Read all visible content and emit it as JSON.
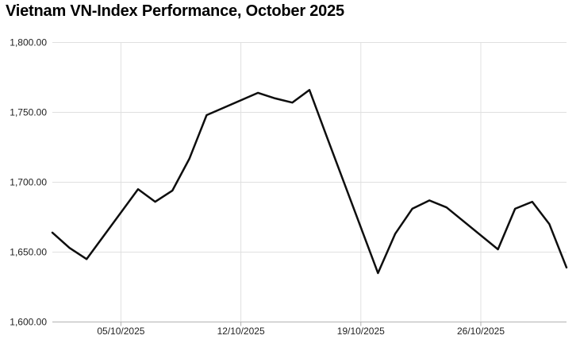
{
  "title": "Vietnam VN-Index Performance, October 2025",
  "chart_data": {
    "type": "line",
    "title": "Vietnam VN-Index Performance, October 2025",
    "series_name": "VN-Index",
    "x": [
      "01/10/2025",
      "02/10/2025",
      "03/10/2025",
      "06/10/2025",
      "07/10/2025",
      "08/10/2025",
      "09/10/2025",
      "10/10/2025",
      "13/10/2025",
      "14/10/2025",
      "15/10/2025",
      "16/10/2025",
      "17/10/2025",
      "20/10/2025",
      "21/10/2025",
      "22/10/2025",
      "23/10/2025",
      "24/10/2025",
      "27/10/2025",
      "28/10/2025",
      "29/10/2025",
      "30/10/2025",
      "31/10/2025"
    ],
    "x_day_of_month": [
      1,
      2,
      3,
      6,
      7,
      8,
      9,
      10,
      13,
      14,
      15,
      16,
      17,
      20,
      21,
      22,
      23,
      24,
      27,
      28,
      29,
      30,
      31
    ],
    "values": [
      1664,
      1653,
      1645,
      1695,
      1686,
      1694,
      1717,
      1748,
      1764,
      1760,
      1757,
      1766,
      1733,
      1635,
      1663,
      1681,
      1687,
      1682,
      1652,
      1681,
      1686,
      1670,
      1639
    ],
    "xlabel": "",
    "ylabel": "",
    "ylim": [
      1600,
      1800
    ],
    "y_tick_step": 50,
    "y_tick_labels": [
      "1,600.00",
      "1,650.00",
      "1,700.00",
      "1,750.00",
      "1,800.00"
    ],
    "x_tick_labels": [
      "05/10/2025",
      "12/10/2025",
      "19/10/2025",
      "26/10/2025"
    ],
    "x_tick_days": [
      5,
      12,
      19,
      26
    ],
    "x_range_days": [
      1,
      31
    ],
    "grid": true,
    "legend": "none",
    "colors": {
      "line": "#0e0e0e",
      "gridline": "#e0e0e0",
      "axis_line": "#b3b3b3",
      "tick_mark": "#b3b3b3",
      "label": "#222222",
      "title": "#000000",
      "background": "#ffffff"
    }
  }
}
